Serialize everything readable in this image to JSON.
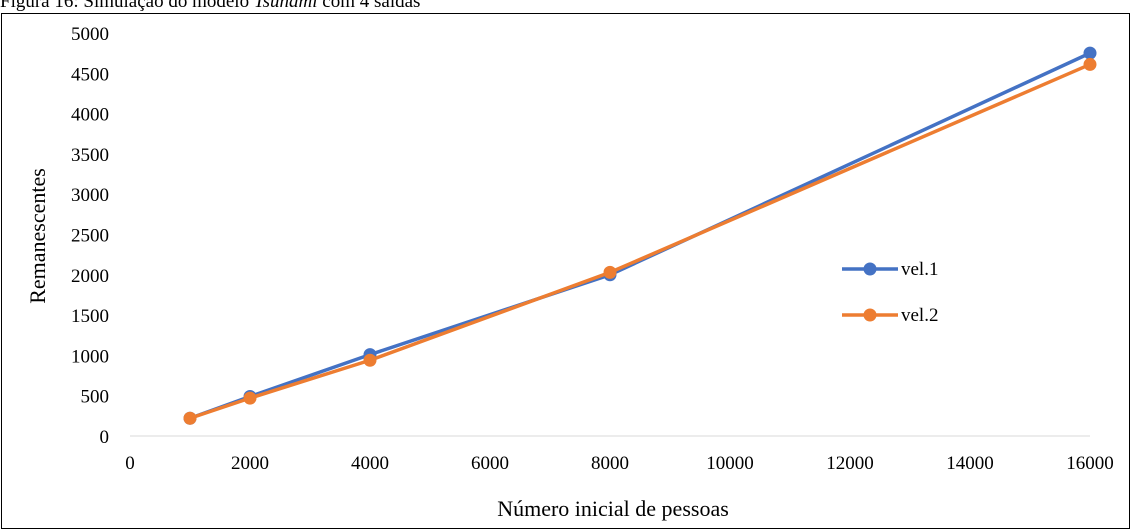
{
  "caption": {
    "prefix": "Figura 16: Simulação do modelo ",
    "model": "Tsunami",
    "suffix": " com 4 saídas"
  },
  "chart_data": {
    "type": "line",
    "xlabel": "Número inicial de pessoas",
    "ylabel": "Remanescentes",
    "xlim": [
      0,
      16000
    ],
    "ylim": [
      0,
      5000
    ],
    "xticks": [
      0,
      2000,
      4000,
      6000,
      8000,
      10000,
      12000,
      14000,
      16000
    ],
    "yticks": [
      0,
      500,
      1000,
      1500,
      2000,
      2500,
      3000,
      3500,
      4000,
      4500,
      5000
    ],
    "grid": false,
    "legend_position": "right",
    "series": [
      {
        "name": "vel.1",
        "color": "#4472C4",
        "x": [
          1000,
          2000,
          4000,
          8000,
          16000
        ],
        "y": [
          220,
          490,
          1010,
          2000,
          4750
        ]
      },
      {
        "name": "vel.2",
        "color": "#ED7D31",
        "x": [
          1000,
          2000,
          4000,
          8000,
          16000
        ],
        "y": [
          220,
          470,
          940,
          2030,
          4610
        ]
      }
    ]
  }
}
